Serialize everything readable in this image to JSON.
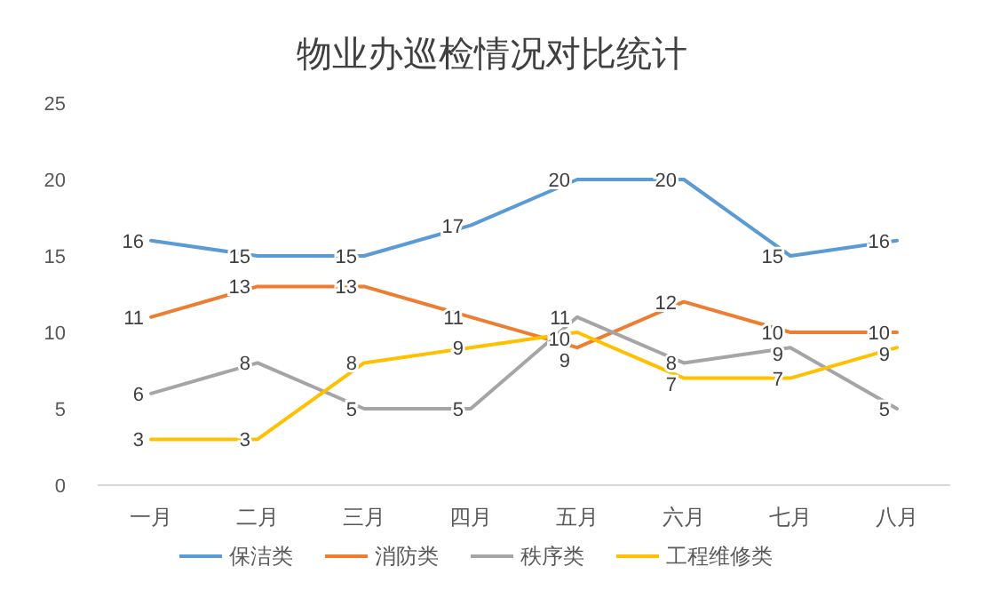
{
  "chart_data": {
    "type": "line",
    "title": "物业办巡检情况对比统计",
    "categories": [
      "一月",
      "二月",
      "三月",
      "四月",
      "五月",
      "六月",
      "七月",
      "八月"
    ],
    "series": [
      {
        "name": "保洁类",
        "color": "#5b9bd5",
        "values": [
          16,
          15,
          15,
          17,
          20,
          20,
          15,
          16
        ]
      },
      {
        "name": "消防类",
        "color": "#ed7d31",
        "values": [
          11,
          13,
          13,
          11,
          9,
          12,
          10,
          10
        ]
      },
      {
        "name": "秩序类",
        "color": "#a5a5a5",
        "values": [
          6,
          8,
          5,
          5,
          11,
          8,
          9,
          5
        ]
      },
      {
        "name": "工程维修类",
        "color": "#ffc000",
        "values": [
          3,
          3,
          8,
          9,
          10,
          7,
          7,
          9
        ]
      }
    ],
    "ylim": [
      0,
      25
    ],
    "yticks": [
      0,
      5,
      10,
      15,
      20,
      25
    ],
    "grid": false,
    "legend": "bottom",
    "data_labels": true,
    "marker": "none",
    "line_style": "solid"
  }
}
